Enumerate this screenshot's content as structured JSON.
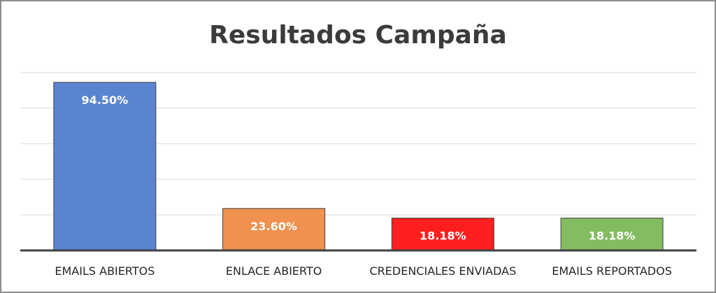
{
  "chart_data": {
    "type": "bar",
    "title": "Resultados Campaña",
    "xlabel": "",
    "ylabel": "",
    "categories": [
      "EMAILS ABIERTOS",
      "ENLACE ABIERTO",
      "CREDENCIALES ENVIADAS",
      "EMAILS REPORTADOS"
    ],
    "values": [
      94.5,
      23.6,
      18.18,
      18.18
    ],
    "data_labels": [
      "94.50%",
      "23.60%",
      "18.18%",
      "18.18%"
    ],
    "colors": [
      "#5b84d0",
      "#f0914f",
      "#ff1f1f",
      "#84bc62"
    ],
    "ylim": [
      0,
      100
    ],
    "y_gridlines": [
      20,
      40,
      60,
      80,
      100
    ],
    "grid": true,
    "legend": "none"
  }
}
